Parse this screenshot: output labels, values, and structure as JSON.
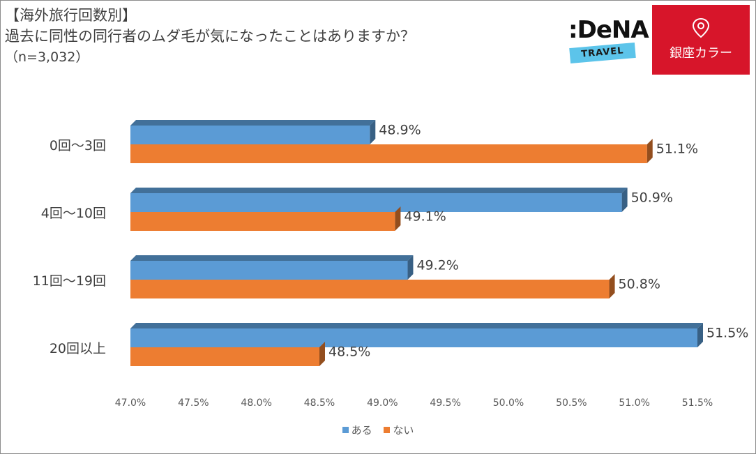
{
  "header": {
    "title_line1": "【海外旅行回数別】",
    "title_line2": "過去に同性の同行者のムダ毛が気になったことはありますか？",
    "sample": "（n=3,032）"
  },
  "logos": {
    "dena_word": ":DeNA",
    "dena_tag": "TRAVEL",
    "ginza_text": "銀座カラー",
    "ginza_color": "#d7152a"
  },
  "chart_data": {
    "type": "bar",
    "orientation": "horizontal",
    "categories": [
      "0回～3回",
      "4回～10回",
      "11回～19回",
      "20回以上"
    ],
    "series": [
      {
        "name": "ある",
        "color": "#5b9bd5",
        "values": [
          48.9,
          50.9,
          49.2,
          51.5
        ],
        "labels": [
          "48.9%",
          "50.9%",
          "49.2%",
          "51.5%"
        ]
      },
      {
        "name": "ない",
        "color": "#ed7d31",
        "values": [
          51.1,
          49.1,
          50.8,
          48.5
        ],
        "labels": [
          "51.1%",
          "49.1%",
          "50.8%",
          "48.5%"
        ]
      }
    ],
    "xlim": [
      47.0,
      51.5
    ],
    "ticks": [
      "47.0%",
      "47.5%",
      "48.0%",
      "48.5%",
      "49.0%",
      "49.5%",
      "50.0%",
      "50.5%",
      "51.0%",
      "51.5%"
    ],
    "tick_values": [
      47.0,
      47.5,
      48.0,
      48.5,
      49.0,
      49.5,
      50.0,
      50.5,
      51.0,
      51.5
    ],
    "grid": false,
    "legend_position": "bottom",
    "style": "3d"
  }
}
